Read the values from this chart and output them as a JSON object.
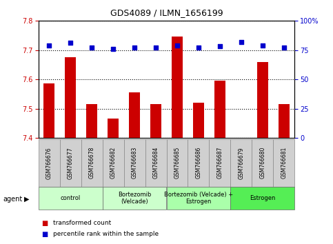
{
  "title": "GDS4089 / ILMN_1656199",
  "samples": [
    "GSM766676",
    "GSM766677",
    "GSM766678",
    "GSM766682",
    "GSM766683",
    "GSM766684",
    "GSM766685",
    "GSM766686",
    "GSM766687",
    "GSM766679",
    "GSM766680",
    "GSM766681"
  ],
  "transformed_counts": [
    7.585,
    7.675,
    7.515,
    7.465,
    7.555,
    7.515,
    7.745,
    7.52,
    7.595,
    7.4,
    7.66,
    7.515
  ],
  "percentile_ranks": [
    79,
    81,
    77,
    76,
    77,
    77,
    79,
    77,
    78,
    82,
    79,
    77
  ],
  "ylim_left": [
    7.4,
    7.8
  ],
  "ylim_right": [
    0,
    100
  ],
  "yticks_left": [
    7.4,
    7.5,
    7.6,
    7.7,
    7.8
  ],
  "yticks_right": [
    0,
    25,
    50,
    75,
    100
  ],
  "bar_color": "#cc0000",
  "scatter_color": "#0000cc",
  "groups": [
    {
      "label": "control",
      "start": 0,
      "end": 3,
      "color": "#ccffcc"
    },
    {
      "label": "Bortezomib\n(Velcade)",
      "start": 3,
      "end": 6,
      "color": "#ccffcc"
    },
    {
      "label": "Bortezomib (Velcade) +\nEstrogen",
      "start": 6,
      "end": 9,
      "color": "#aaffaa"
    },
    {
      "label": "Estrogen",
      "start": 9,
      "end": 12,
      "color": "#55ee55"
    }
  ],
  "agent_label": "agent",
  "legend_bar_label": "transformed count",
  "legend_scatter_label": "percentile rank within the sample",
  "dotted_line_color": "#000000",
  "bg_color": "#ffffff",
  "plot_bg_color": "#ffffff",
  "tick_label_color_left": "#cc0000",
  "tick_label_color_right": "#0000cc",
  "bar_width": 0.5,
  "sample_box_color": "#d0d0d0",
  "sample_box_edge": "#888888"
}
